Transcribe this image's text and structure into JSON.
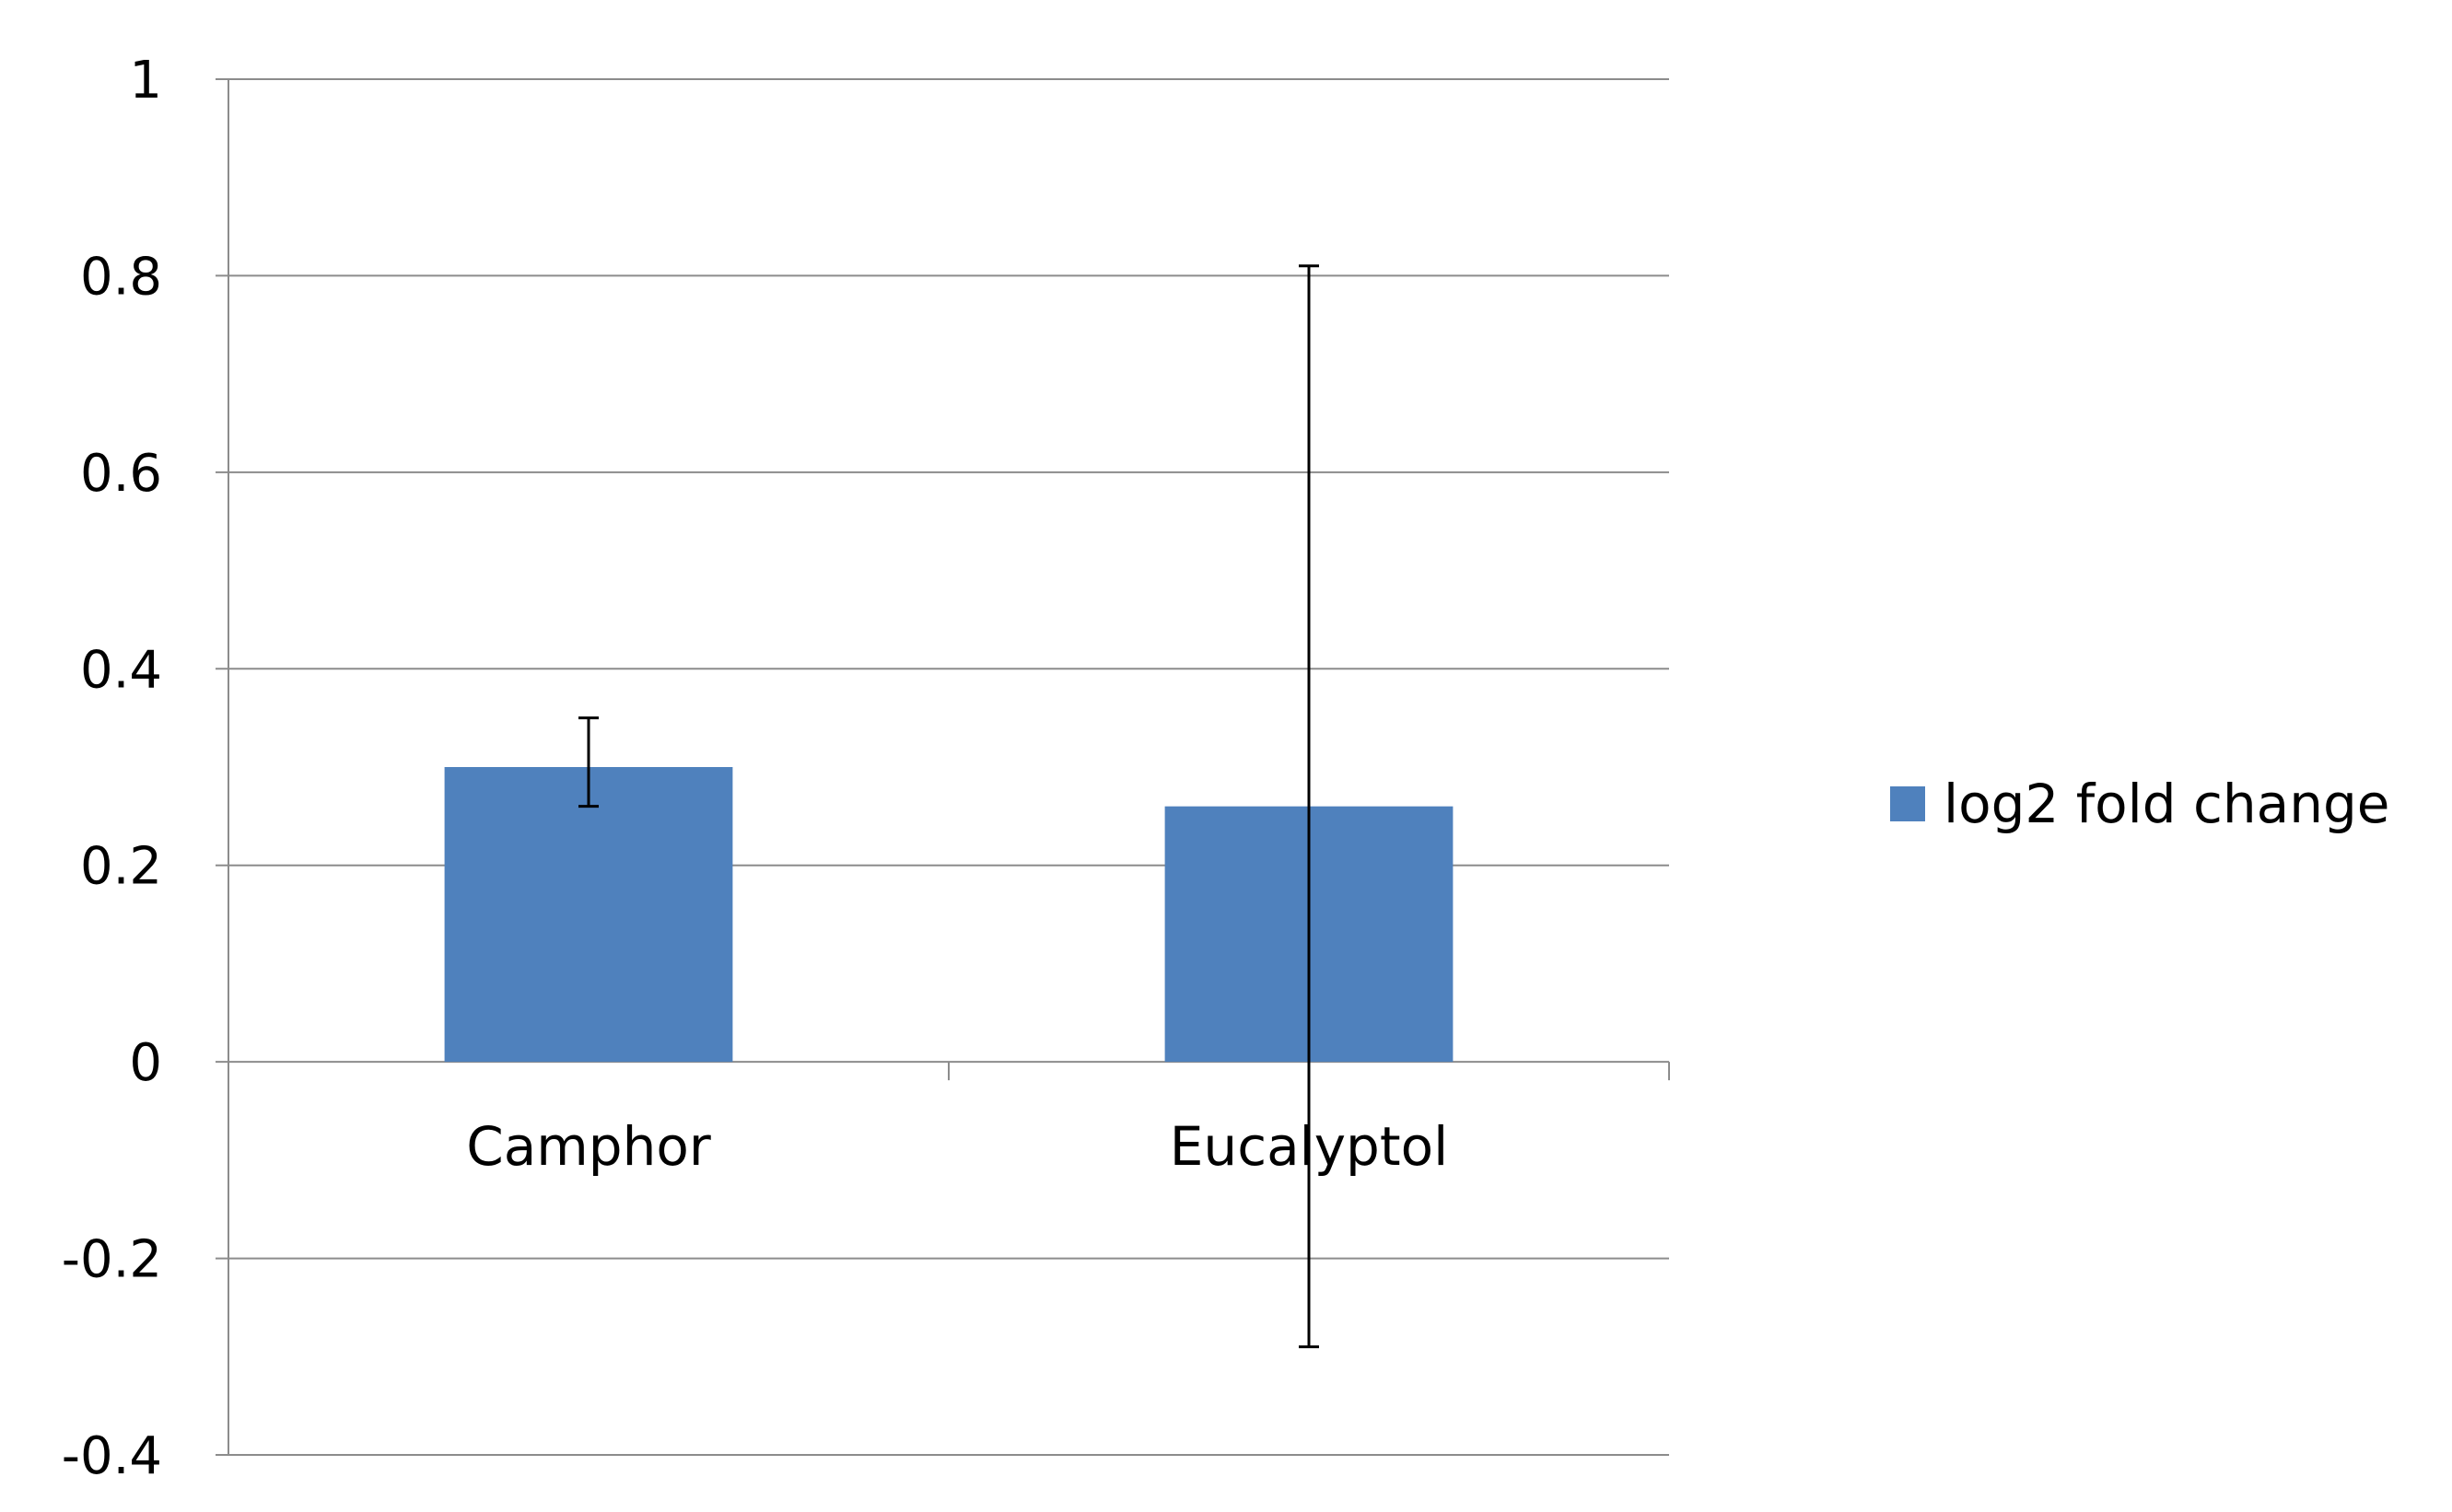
{
  "chart_data": {
    "type": "bar",
    "title": "",
    "xlabel": "",
    "ylabel": "",
    "categories": [
      "Camphor",
      "Eucalyptol"
    ],
    "series": [
      {
        "name": "log2 fold change",
        "color": "#4f81bd",
        "values": [
          0.3,
          0.26
        ],
        "error_low": [
          0.26,
          -0.29
        ],
        "error_high": [
          0.35,
          0.81
        ]
      }
    ],
    "ylim": [
      -0.4,
      1.0
    ],
    "yticks": [
      -0.4,
      -0.2,
      0,
      0.2,
      0.4,
      0.6,
      0.8,
      1
    ],
    "ytick_labels": [
      "-0.4",
      "-0.2",
      "0",
      "0.2",
      "0.4",
      "0.6",
      "0.8",
      "1"
    ],
    "grid": true,
    "legend_position": "right",
    "colors": {
      "bar": "#4f81bd",
      "grid": "#8c8c8c",
      "axis": "#8c8c8c",
      "error_bar": "#000000",
      "text": "#000000"
    }
  }
}
